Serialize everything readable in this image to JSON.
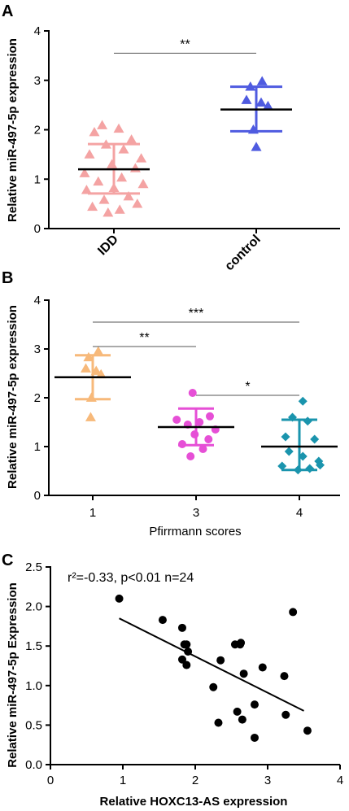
{
  "chart_data": [
    {
      "panel": "A",
      "type": "scatter",
      "ylabel": "Relative miR-497-5p expression",
      "xlabel": "",
      "ylim": [
        0,
        4
      ],
      "yticks": [
        0,
        1,
        2,
        3,
        4
      ],
      "categories": [
        "IDD",
        "control"
      ],
      "colors": [
        "#f4a3a3",
        "#4f5be0"
      ],
      "marker": "triangle",
      "series": [
        {
          "name": "IDD",
          "mean": 1.2,
          "sd_upper": 1.71,
          "sd_lower": 0.71,
          "points": [
            {
              "x": -0.12,
              "y": 2.09
            },
            {
              "x": 0.05,
              "y": 2.02
            },
            {
              "x": -0.2,
              "y": 1.95
            },
            {
              "x": 0.18,
              "y": 1.8
            },
            {
              "x": -0.08,
              "y": 1.7
            },
            {
              "x": 0.1,
              "y": 1.6
            },
            {
              "x": -0.25,
              "y": 1.5
            },
            {
              "x": 0.28,
              "y": 1.42
            },
            {
              "x": -0.02,
              "y": 1.3
            },
            {
              "x": 0.22,
              "y": 1.22
            },
            {
              "x": -0.3,
              "y": 1.12
            },
            {
              "x": 0.08,
              "y": 1.03
            },
            {
              "x": -0.16,
              "y": 0.95
            },
            {
              "x": 0.3,
              "y": 0.9
            },
            {
              "x": 0.0,
              "y": 0.82
            },
            {
              "x": -0.28,
              "y": 0.78
            },
            {
              "x": 0.15,
              "y": 0.65
            },
            {
              "x": -0.1,
              "y": 0.58
            },
            {
              "x": 0.24,
              "y": 0.5
            },
            {
              "x": -0.22,
              "y": 0.44
            },
            {
              "x": 0.06,
              "y": 0.38
            },
            {
              "x": -0.06,
              "y": 0.32
            }
          ]
        },
        {
          "name": "control",
          "mean": 2.41,
          "sd_upper": 2.87,
          "sd_lower": 1.97,
          "points": [
            {
              "x": 0.06,
              "y": 2.98
            },
            {
              "x": -0.06,
              "y": 2.87
            },
            {
              "x": -0.1,
              "y": 2.6
            },
            {
              "x": 0.05,
              "y": 2.55
            },
            {
              "x": 0.12,
              "y": 2.48
            },
            {
              "x": -0.03,
              "y": 2.0
            },
            {
              "x": 0.0,
              "y": 1.65
            }
          ]
        }
      ],
      "significance": [
        {
          "from": 0,
          "to": 1,
          "label": "**",
          "y": 3.55
        }
      ]
    },
    {
      "panel": "B",
      "type": "scatter",
      "ylabel": "Relative miR-497-5p expression",
      "xlabel": "Pfirrmann scores",
      "ylim": [
        0,
        4
      ],
      "yticks": [
        0,
        1,
        2,
        3,
        4
      ],
      "categories": [
        "1",
        "3",
        "4"
      ],
      "colors": [
        "#f7b97a",
        "#e64fd6",
        "#1a94ad"
      ],
      "markers": [
        "triangle",
        "circle",
        "diamond"
      ],
      "series": [
        {
          "name": "1",
          "mean": 2.42,
          "sd_upper": 2.87,
          "sd_lower": 1.97,
          "points": [
            {
              "x": 0.08,
              "y": 2.95
            },
            {
              "x": -0.06,
              "y": 2.83
            },
            {
              "x": -0.1,
              "y": 2.6
            },
            {
              "x": 0.05,
              "y": 2.55
            },
            {
              "x": 0.12,
              "y": 2.48
            },
            {
              "x": -0.02,
              "y": 2.0
            },
            {
              "x": -0.03,
              "y": 1.6
            }
          ]
        },
        {
          "name": "3",
          "mean": 1.4,
          "sd_upper": 1.78,
          "sd_lower": 1.03,
          "points": [
            {
              "x": -0.05,
              "y": 2.1
            },
            {
              "x": 0.2,
              "y": 1.62
            },
            {
              "x": -0.28,
              "y": 1.55
            },
            {
              "x": 0.05,
              "y": 1.5
            },
            {
              "x": -0.12,
              "y": 1.45
            },
            {
              "x": 0.28,
              "y": 1.35
            },
            {
              "x": -0.02,
              "y": 1.25
            },
            {
              "x": 0.18,
              "y": 1.15
            },
            {
              "x": -0.2,
              "y": 1.05
            },
            {
              "x": 0.1,
              "y": 0.95
            },
            {
              "x": -0.08,
              "y": 0.8
            }
          ]
        },
        {
          "name": "4",
          "mean": 1.0,
          "sd_upper": 1.55,
          "sd_lower": 0.52,
          "points": [
            {
              "x": 0.05,
              "y": 1.93
            },
            {
              "x": -0.1,
              "y": 1.6
            },
            {
              "x": 0.12,
              "y": 1.52
            },
            {
              "x": -0.2,
              "y": 1.2
            },
            {
              "x": 0.22,
              "y": 1.15
            },
            {
              "x": -0.15,
              "y": 0.9
            },
            {
              "x": 0.05,
              "y": 0.8
            },
            {
              "x": 0.28,
              "y": 0.7
            },
            {
              "x": -0.25,
              "y": 0.6
            },
            {
              "x": -0.02,
              "y": 0.52
            },
            {
              "x": 0.15,
              "y": 0.55
            },
            {
              "x": 0.3,
              "y": 0.62
            }
          ]
        }
      ],
      "significance": [
        {
          "from": 0,
          "to": 1,
          "label": "**",
          "y": 3.05
        },
        {
          "from": 0,
          "to": 2,
          "label": "***",
          "y": 3.55
        },
        {
          "from": 1,
          "to": 2,
          "label": "*",
          "y": 2.05
        }
      ]
    },
    {
      "panel": "C",
      "type": "scatter",
      "xlabel": "Relative HOXC13-AS expression",
      "ylabel": "Relative miR-497-5p Expression",
      "xlim": [
        0,
        4
      ],
      "ylim": [
        0,
        2.5
      ],
      "xticks": [
        0,
        1,
        2,
        3,
        4
      ],
      "yticks": [
        "0.0",
        "0.5",
        "1.0",
        "1.5",
        "2.0",
        "2.5"
      ],
      "annotation": "r²=-0.33, p<0.01 n=24",
      "color": "#000000",
      "fit_line": {
        "x": [
          0.95,
          3.5
        ],
        "y": [
          1.85,
          0.68
        ]
      },
      "points": [
        {
          "x": 0.95,
          "y": 2.1
        },
        {
          "x": 1.55,
          "y": 1.83
        },
        {
          "x": 1.82,
          "y": 1.73
        },
        {
          "x": 1.85,
          "y": 1.52
        },
        {
          "x": 1.88,
          "y": 1.52
        },
        {
          "x": 1.9,
          "y": 1.43
        },
        {
          "x": 1.82,
          "y": 1.33
        },
        {
          "x": 1.88,
          "y": 1.26
        },
        {
          "x": 2.25,
          "y": 0.98
        },
        {
          "x": 2.35,
          "y": 1.32
        },
        {
          "x": 2.55,
          "y": 1.52
        },
        {
          "x": 2.63,
          "y": 1.54
        },
        {
          "x": 2.67,
          "y": 1.15
        },
        {
          "x": 2.93,
          "y": 1.23
        },
        {
          "x": 3.35,
          "y": 1.93
        },
        {
          "x": 3.23,
          "y": 1.12
        },
        {
          "x": 2.58,
          "y": 0.67
        },
        {
          "x": 2.65,
          "y": 0.57
        },
        {
          "x": 2.32,
          "y": 0.53
        },
        {
          "x": 2.82,
          "y": 0.76
        },
        {
          "x": 2.82,
          "y": 0.34
        },
        {
          "x": 3.25,
          "y": 0.63
        },
        {
          "x": 3.55,
          "y": 0.43
        },
        {
          "x": 2.62,
          "y": 1.52
        }
      ]
    }
  ]
}
